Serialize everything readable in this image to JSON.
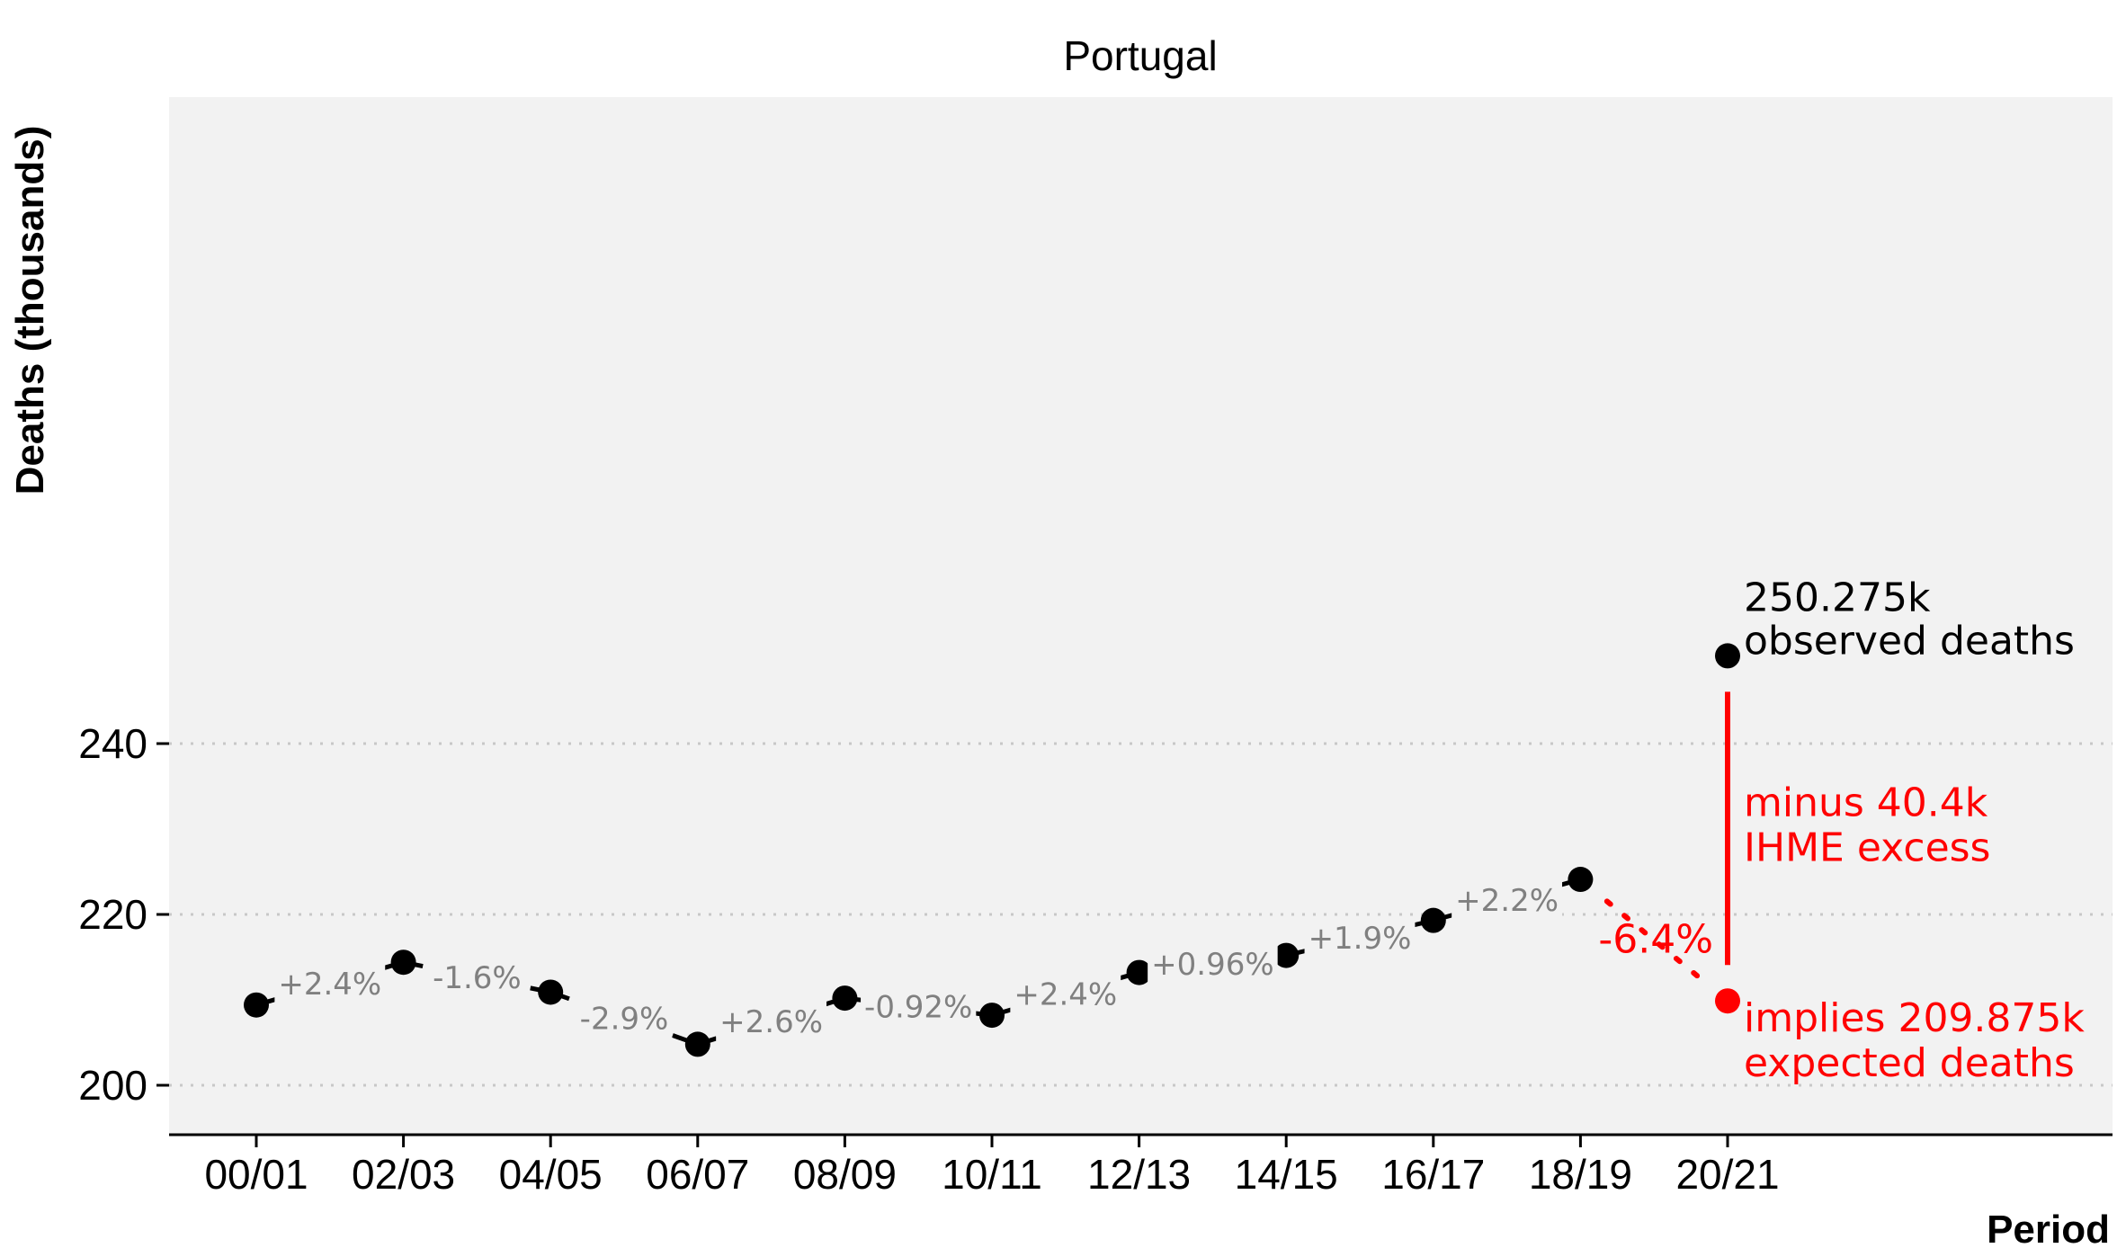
{
  "chart_data": {
    "type": "line",
    "title": "Portugal",
    "xlabel": "Period",
    "ylabel": "Deaths (thousands)",
    "categories": [
      "00/01",
      "02/03",
      "04/05",
      "06/07",
      "08/09",
      "10/11",
      "12/13",
      "14/15",
      "16/17",
      "18/19",
      "20/21"
    ],
    "yticks": [
      200,
      220,
      240
    ],
    "ylim": [
      197,
      256
    ],
    "grid": "horizontal dotted",
    "series": [
      {
        "values": [
          209.4,
          214.4,
          210.9,
          204.8,
          210.2,
          208.2,
          213.2,
          215.2,
          219.3,
          224.1,
          250.275
        ],
        "color": "#000000"
      }
    ],
    "changes": [
      {
        "from": "00/01",
        "to": "02/03",
        "label": "+2.4%"
      },
      {
        "from": "02/03",
        "to": "04/05",
        "label": "-1.6%"
      },
      {
        "from": "04/05",
        "to": "06/07",
        "label": "-2.9%"
      },
      {
        "from": "06/07",
        "to": "08/09",
        "label": "+2.6%"
      },
      {
        "from": "08/09",
        "to": "10/11",
        "label": "-0.92%"
      },
      {
        "from": "10/11",
        "to": "12/13",
        "label": "+2.4%"
      },
      {
        "from": "12/13",
        "to": "14/15",
        "label": "+0.96%"
      },
      {
        "from": "14/15",
        "to": "16/17",
        "label": "+1.9%"
      },
      {
        "from": "16/17",
        "to": "18/19",
        "label": "+2.2%"
      }
    ],
    "observed": {
      "period": "20/21",
      "value": 250.275,
      "label_line1": "250.275k",
      "label_line2": "observed deaths",
      "color": "#000000"
    },
    "excess": {
      "value": 40.4,
      "label_line1": "minus 40.4k",
      "label_line2": "IHME excess",
      "color": "#ff0000"
    },
    "expected": {
      "period": "20/21",
      "value": 209.875,
      "label_line1": "implies 209.875k",
      "label_line2": "expected deaths",
      "change_label": "-6.4%",
      "color": "#ff0000"
    },
    "panel_background": "#f2f2f2"
  }
}
